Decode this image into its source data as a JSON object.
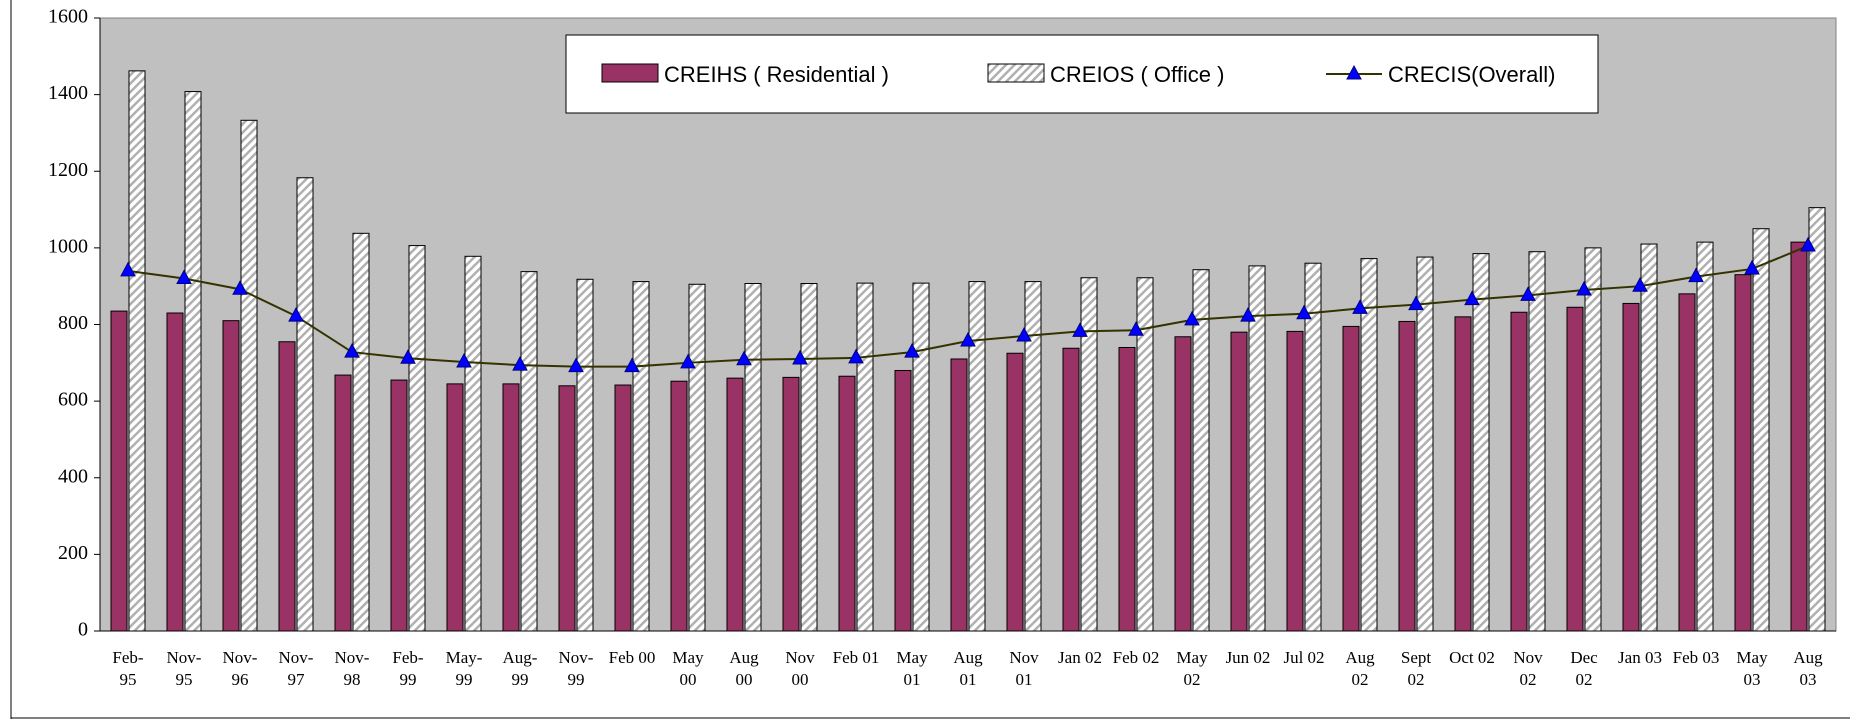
{
  "chart_data": {
    "type": "bar_line",
    "categories": [
      "Feb-\n95",
      "Nov-\n95",
      "Nov-\n96",
      "Nov-\n97",
      "Nov-\n98",
      "Feb-\n99",
      "May-\n99",
      "Aug-\n99",
      "Nov-\n99",
      "Feb 00",
      "May\n00",
      "Aug\n00",
      "Nov\n00",
      "Feb 01",
      "May\n01",
      "Aug\n01",
      "Nov\n01",
      "Jan 02",
      "Feb 02",
      "May\n02",
      "Jun 02",
      "Jul 02",
      "Aug\n02",
      "Sept\n02",
      "Oct 02",
      "Nov\n02",
      "Dec\n02",
      "Jan 03",
      "Feb 03",
      "May\n03",
      "Aug\n03"
    ],
    "series": [
      {
        "name": "CREIHS ( Residential )",
        "color": "#993366",
        "kind": "bar",
        "values": [
          835,
          830,
          810,
          755,
          668,
          655,
          645,
          645,
          640,
          642,
          652,
          660,
          662,
          665,
          680,
          710,
          725,
          738,
          740,
          768,
          780,
          782,
          795,
          808,
          820,
          832,
          845,
          855,
          880,
          930,
          1015
        ]
      },
      {
        "name": "CREIOS ( Office )",
        "color": "#ffffff",
        "kind": "hatched-bar",
        "values": [
          1462,
          1408,
          1333,
          1183,
          1038,
          1006,
          978,
          938,
          918,
          912,
          905,
          907,
          907,
          908,
          908,
          912,
          912,
          922,
          922,
          943,
          953,
          960,
          972,
          976,
          985,
          990,
          1000,
          1010,
          1015,
          1050,
          1105
        ]
      },
      {
        "name": "CRECIS(Overall)",
        "color": "#333300",
        "marker_color": "#0000ff",
        "kind": "line",
        "values": [
          940,
          920,
          892,
          822,
          728,
          712,
          702,
          694,
          690,
          690,
          700,
          708,
          710,
          713,
          728,
          757,
          770,
          782,
          785,
          812,
          822,
          828,
          842,
          852,
          865,
          876,
          890,
          900,
          925,
          945,
          1005
        ]
      }
    ],
    "ylim": [
      0,
      1600
    ],
    "yticks": [
      0,
      200,
      400,
      600,
      800,
      1000,
      1200,
      1400,
      1600
    ],
    "plot_background": "#c0c0c0",
    "legend": "top"
  }
}
